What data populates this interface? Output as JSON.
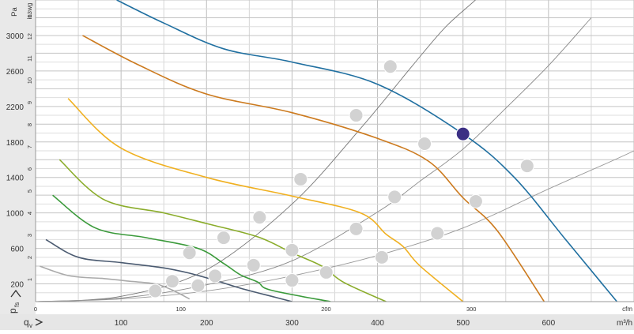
{
  "chart_data": {
    "type": "line",
    "title": "",
    "xlabel_primary": "m³/h",
    "xlabel_secondary": "cfm",
    "ylabel_primary": "Pa",
    "ylabel_secondary": "in. wg",
    "axis_letters": {
      "y": "p",
      "y_sub": "fs",
      "x": "q",
      "x_sub": "v"
    },
    "x_ticks_m3h": [
      "100",
      "200",
      "300",
      "400",
      "500",
      "600"
    ],
    "x_ticks_cfm": [
      "0",
      "100",
      "200",
      "300"
    ],
    "y_ticks_pa": [
      "200",
      "600",
      "1000",
      "1400",
      "1800",
      "2200",
      "2600",
      "3000"
    ],
    "y_ticks_inwg": [
      "1",
      "2",
      "3",
      "4",
      "5",
      "6",
      "7",
      "8",
      "9",
      "10",
      "11",
      "12",
      "13"
    ],
    "xlim_m3h": [
      0,
      700
    ],
    "ylim_pa": [
      0,
      3400
    ],
    "grid": true,
    "legend": "none",
    "series": [
      {
        "color": "#1f6fa0",
        "x": [
          95,
          150,
          220,
          300,
          400,
          500,
          560,
          620,
          680
        ],
        "y": [
          3400,
          3140,
          2850,
          2700,
          2450,
          1890,
          1400,
          700,
          0
        ]
      },
      {
        "color": "#cc7a1e",
        "x": [
          55,
          120,
          200,
          300,
          400,
          460,
          500,
          540,
          595
        ],
        "y": [
          3000,
          2670,
          2340,
          2130,
          1840,
          1580,
          1170,
          800,
          0
        ]
      },
      {
        "color": "#f0b020",
        "x": [
          38,
          100,
          200,
          300,
          380,
          410,
          430,
          450,
          500
        ],
        "y": [
          2290,
          1730,
          1400,
          1190,
          1000,
          760,
          620,
          400,
          0
        ]
      },
      {
        "color": "#8aac2a",
        "x": [
          28,
          80,
          150,
          200,
          260,
          300,
          335,
          360,
          410
        ],
        "y": [
          1600,
          1150,
          1000,
          880,
          730,
          550,
          400,
          220,
          0
        ]
      },
      {
        "color": "#3a9a3a",
        "x": [
          20,
          70,
          130,
          190,
          220,
          240,
          260,
          275,
          345
        ],
        "y": [
          1200,
          830,
          720,
          600,
          430,
          300,
          220,
          130,
          0
        ]
      },
      {
        "color": "#4a5a70",
        "x": [
          12,
          50,
          100,
          150,
          180,
          210,
          240,
          280,
          300
        ],
        "y": [
          700,
          500,
          440,
          380,
          320,
          240,
          150,
          50,
          0
        ]
      },
      {
        "color": "#aaaaaa",
        "x": [
          5,
          40,
          80,
          110,
          140,
          160,
          180
        ],
        "y": [
          400,
          290,
          260,
          230,
          200,
          130,
          30
        ]
      }
    ],
    "system_curves": [
      {
        "color": "#777777",
        "x": [
          0,
          100,
          200,
          300,
          380,
          440,
          480,
          520,
          550
        ],
        "y": [
          0,
          60,
          360,
          1100,
          1950,
          2650,
          3100,
          3450,
          3780
        ]
      },
      {
        "color": "#888888",
        "x": [
          0,
          100,
          200,
          300,
          400,
          450,
          500,
          550,
          600,
          650
        ],
        "y": [
          0,
          40,
          190,
          460,
          1010,
          1360,
          1720,
          2180,
          2660,
          3200
        ]
      },
      {
        "color": "#999999",
        "x": [
          0,
          100,
          200,
          300,
          400,
          500,
          600,
          700,
          780
        ],
        "y": [
          0,
          30,
          120,
          290,
          520,
          830,
          1270,
          1700,
          2100
        ]
      }
    ],
    "operating_points": {
      "x": [
        415,
        375,
        310,
        262,
        220,
        180,
        160,
        140,
        455,
        420,
        375,
        300,
        255,
        210,
        190,
        575,
        515,
        470,
        405,
        340,
        300
      ],
      "y": [
        2650,
        2100,
        1380,
        950,
        720,
        550,
        230,
        120,
        1780,
        1180,
        820,
        580,
        410,
        290,
        180,
        1530,
        1130,
        770,
        500,
        330,
        240
      ],
      "highlighted": {
        "x": 500,
        "y": 1890,
        "color": "#3b2f84"
      }
    }
  }
}
